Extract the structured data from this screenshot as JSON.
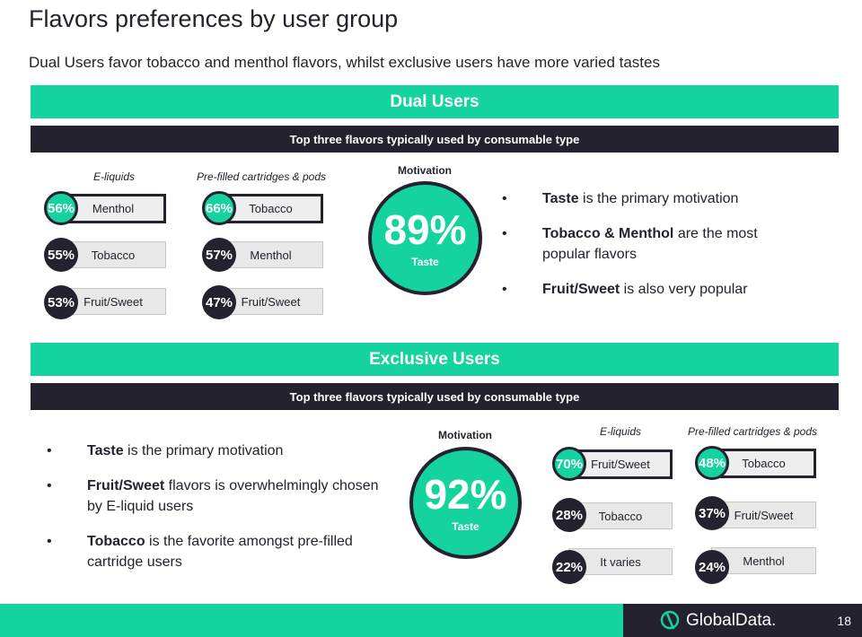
{
  "title": "Flavors preferences by user group",
  "subtitle": "Dual Users favor tobacco and menthol flavors, whilst exclusive users have more varied tastes",
  "dual": {
    "header": "Dual Users",
    "subheader": "Top three flavors typically used by consumable type",
    "eliquids_label": "E-liquids",
    "cartridges_label": "Pre-filled cartridges & pods",
    "motivation_label": "Motivation",
    "motivation_pct": "89%",
    "motivation_reason": "Taste",
    "eliquids": [
      {
        "pct": "56%",
        "flavor": "Menthol"
      },
      {
        "pct": "55%",
        "flavor": "Tobacco"
      },
      {
        "pct": "53%",
        "flavor": "Fruit/Sweet"
      }
    ],
    "cartridges": [
      {
        "pct": "66%",
        "flavor": "Tobacco"
      },
      {
        "pct": "57%",
        "flavor": "Menthol"
      },
      {
        "pct": "47%",
        "flavor": "Fruit/Sweet"
      }
    ],
    "bullets": [
      {
        "bold": "Taste",
        "text": " is the primary motivation"
      },
      {
        "bold": "Tobacco & Menthol",
        "text": " are the most popular flavors"
      },
      {
        "bold": "Fruit/Sweet",
        "text": " is also very popular"
      }
    ]
  },
  "exclusive": {
    "header": "Exclusive Users",
    "subheader": "Top three flavors typically used by consumable type",
    "eliquids_label": "E-liquids",
    "cartridges_label": "Pre-filled cartridges & pods",
    "motivation_label": "Motivation",
    "motivation_pct": "92%",
    "motivation_reason": "Taste",
    "eliquids": [
      {
        "pct": "70%",
        "flavor": "Fruit/Sweet"
      },
      {
        "pct": "28%",
        "flavor": "Tobacco"
      },
      {
        "pct": "22%",
        "flavor": "It varies"
      }
    ],
    "cartridges": [
      {
        "pct": "48%",
        "flavor": "Tobacco"
      },
      {
        "pct": "37%",
        "flavor": "Fruit/Sweet"
      },
      {
        "pct": "24%",
        "flavor": "Menthol"
      }
    ],
    "bullets": [
      {
        "bold": "Taste",
        "text": " is the primary motivation"
      },
      {
        "bold": "Fruit/Sweet",
        "text": " flavors is overwhelmingly chosen by E-liquid users"
      },
      {
        "bold": "Tobacco",
        "text": " is the favorite amongst pre-filled cartridge users"
      }
    ]
  },
  "footer": {
    "logo_text": "GlobalData.",
    "page_number": "18"
  },
  "colors": {
    "accent": "#15d39f",
    "dark": "#23222e"
  }
}
